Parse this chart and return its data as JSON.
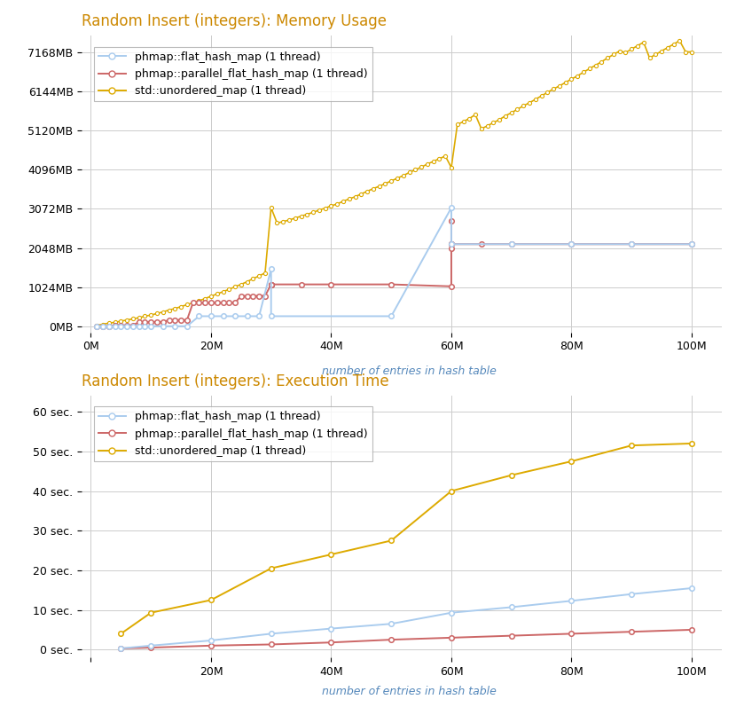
{
  "title1": "Random Insert (integers): Memory Usage",
  "title2": "Random Insert (integers): Execution Time",
  "xlabel": "number of entries in hash table",
  "bg_color": "#ffffff",
  "grid_color": "#cccccc",
  "mem_yticks": [
    0,
    1024,
    2048,
    3072,
    4096,
    5120,
    6144,
    7168
  ],
  "mem_ytick_labels": [
    "0MB",
    "1024MB",
    "2048MB",
    "3072MB",
    "4096MB",
    "5120MB",
    "6144MB",
    "7168MB"
  ],
  "mem_ylim": [
    -150,
    7600
  ],
  "time_yticks": [
    0,
    10,
    20,
    30,
    40,
    50,
    60
  ],
  "time_ytick_labels": [
    "0 sec.",
    "10 sec.",
    "20 sec.",
    "30 sec.",
    "40 sec.",
    "50 sec.",
    "60 sec."
  ],
  "time_ylim": [
    -2,
    64
  ],
  "xticks": [
    0,
    20000000,
    40000000,
    60000000,
    80000000,
    100000000
  ],
  "xtick_labels": [
    "0M",
    "20M",
    "40M",
    "60M",
    "80M",
    "100M"
  ],
  "xlim": [
    -1500000,
    105000000
  ],
  "xtick_labels2": [
    "",
    "20M",
    "40M",
    "60M",
    "80M",
    "100M"
  ],
  "colors": {
    "flat": "#aaccee",
    "parallel": "#cc6666",
    "std": "#ddaa00"
  },
  "legend_labels": [
    "phmap::flat_hash_map (1 thread)",
    "phmap::parallel_flat_hash_map (1 thread)",
    "std::unordered_map (1 thread)"
  ],
  "mem_flat_x": [
    1000000,
    2000000,
    3000000,
    4000000,
    5000000,
    6000000,
    7000000,
    8000000,
    9000000,
    10000000,
    12000000,
    14000000,
    16000000,
    18000000,
    20000000,
    22000000,
    24000000,
    26000000,
    28000000,
    30000000,
    30000000,
    50000000,
    60000000,
    60000000,
    70000000,
    80000000,
    90000000,
    100000000
  ],
  "mem_flat_y": [
    10,
    10,
    10,
    10,
    10,
    10,
    10,
    10,
    10,
    10,
    10,
    10,
    10,
    270,
    270,
    270,
    270,
    270,
    270,
    1500,
    270,
    270,
    3100,
    2150,
    2150,
    2150,
    2150,
    2150
  ],
  "mem_parallel_x": [
    1000000,
    2000000,
    3000000,
    4000000,
    5000000,
    6000000,
    7000000,
    8000000,
    9000000,
    10000000,
    11000000,
    12000000,
    13000000,
    14000000,
    15000000,
    16000000,
    17000000,
    18000000,
    19000000,
    20000000,
    21000000,
    22000000,
    23000000,
    24000000,
    25000000,
    26000000,
    27000000,
    28000000,
    29000000,
    30000000,
    30000000,
    30000000,
    35000000,
    40000000,
    50000000,
    60000000,
    60000000,
    60000000,
    60000000,
    60000000,
    65000000,
    70000000,
    80000000,
    90000000,
    100000000
  ],
  "mem_parallel_y": [
    10,
    10,
    10,
    30,
    30,
    30,
    30,
    120,
    120,
    120,
    120,
    120,
    170,
    170,
    170,
    170,
    620,
    620,
    620,
    620,
    620,
    620,
    620,
    620,
    800,
    800,
    800,
    800,
    800,
    1100,
    1100,
    1100,
    1100,
    1100,
    1100,
    1050,
    2050,
    2150,
    2750,
    2150,
    2150,
    2150,
    2150,
    2150,
    2150
  ],
  "mem_std_x": [
    1000000,
    2000000,
    3000000,
    4000000,
    5000000,
    6000000,
    7000000,
    8000000,
    9000000,
    10000000,
    11000000,
    12000000,
    13000000,
    14000000,
    15000000,
    16000000,
    17000000,
    18000000,
    19000000,
    20000000,
    21000000,
    22000000,
    23000000,
    24000000,
    25000000,
    26000000,
    27000000,
    28000000,
    29000000,
    30000000,
    31000000,
    32000000,
    33000000,
    34000000,
    35000000,
    36000000,
    37000000,
    38000000,
    39000000,
    40000000,
    41000000,
    42000000,
    43000000,
    44000000,
    45000000,
    46000000,
    47000000,
    48000000,
    49000000,
    50000000,
    51000000,
    52000000,
    53000000,
    54000000,
    55000000,
    56000000,
    57000000,
    58000000,
    59000000,
    60000000,
    61000000,
    62000000,
    63000000,
    64000000,
    65000000,
    66000000,
    67000000,
    68000000,
    69000000,
    70000000,
    71000000,
    72000000,
    73000000,
    74000000,
    75000000,
    76000000,
    77000000,
    78000000,
    79000000,
    80000000,
    81000000,
    82000000,
    83000000,
    84000000,
    85000000,
    86000000,
    87000000,
    88000000,
    89000000,
    90000000,
    91000000,
    92000000,
    93000000,
    94000000,
    95000000,
    96000000,
    97000000,
    98000000,
    99000000,
    100000000
  ],
  "mem_std_y": [
    30,
    60,
    90,
    110,
    140,
    170,
    200,
    230,
    270,
    300,
    340,
    380,
    430,
    470,
    520,
    570,
    620,
    670,
    730,
    790,
    850,
    910,
    970,
    1040,
    1100,
    1170,
    1250,
    1320,
    1400,
    3100,
    2700,
    2740,
    2780,
    2830,
    2880,
    2930,
    2980,
    3040,
    3090,
    3150,
    3200,
    3270,
    3330,
    3390,
    3460,
    3530,
    3600,
    3660,
    3730,
    3800,
    3870,
    3940,
    4020,
    4090,
    4160,
    4240,
    4310,
    4380,
    4450,
    4150,
    5270,
    5350,
    5430,
    5530,
    5160,
    5240,
    5320,
    5400,
    5500,
    5580,
    5670,
    5760,
    5840,
    5930,
    6020,
    6110,
    6200,
    6280,
    6370,
    6460,
    6540,
    6640,
    6730,
    6820,
    6910,
    7010,
    7100,
    7190,
    7150,
    7240,
    7330,
    7420,
    7010,
    7100,
    7190,
    7280,
    7370,
    7460,
    7168,
    7168
  ],
  "time_flat_x": [
    5000000,
    10000000,
    20000000,
    30000000,
    40000000,
    50000000,
    60000000,
    70000000,
    80000000,
    90000000,
    100000000
  ],
  "time_flat_y": [
    0.3,
    1.0,
    2.3,
    4.0,
    5.3,
    6.5,
    9.3,
    10.7,
    12.3,
    14.0,
    15.5
  ],
  "time_parallel_x": [
    5000000,
    10000000,
    20000000,
    30000000,
    40000000,
    50000000,
    60000000,
    70000000,
    80000000,
    90000000,
    100000000
  ],
  "time_parallel_y": [
    0.3,
    0.5,
    1.0,
    1.3,
    1.8,
    2.5,
    3.0,
    3.5,
    4.0,
    4.5,
    5.0
  ],
  "time_std_x": [
    5000000,
    10000000,
    20000000,
    30000000,
    40000000,
    50000000,
    60000000,
    70000000,
    80000000,
    90000000,
    100000000
  ],
  "time_std_y": [
    4.0,
    9.3,
    12.5,
    20.5,
    24.0,
    27.5,
    40.0,
    44.0,
    47.5,
    51.5,
    52.0
  ]
}
